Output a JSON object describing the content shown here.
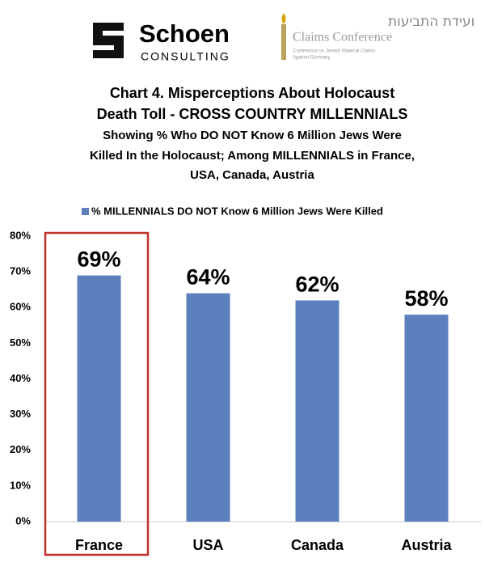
{
  "logos": {
    "schoen": "Schoen",
    "consulting": "CONSULTING",
    "hebrew": "ועידת התביעות",
    "claims": "Claims Conference",
    "claims_small": [
      "Conference on Jewish Material Claims",
      "Against Germany"
    ]
  },
  "chart_data": {
    "type": "bar",
    "title_lines": [
      "Chart 4. Misperceptions About Holocaust",
      "Death Toll  - CROSS COUNTRY MILLENNIALS"
    ],
    "subtitle_lines": [
      "Showing % Who DO NOT Know 6 Million Jews Were",
      "Killed In the Holocaust; Among MILLENNIALS in France,",
      "USA, Canada, Austria"
    ],
    "categories": [
      "France",
      "USA",
      "Canada",
      "Austria"
    ],
    "series": [
      {
        "name": "% MILLENNIALS DO NOT Know 6 Million Jews Were Killed",
        "color": "#5b80bd",
        "values": [
          69,
          64,
          62,
          58
        ],
        "value_labels": [
          "69%",
          "64%",
          "62%",
          "58%"
        ]
      }
    ],
    "ylim": [
      0,
      80
    ],
    "yticks": [
      {
        "value": 0,
        "label": "0%"
      },
      {
        "value": 10,
        "label": "10%"
      },
      {
        "value": 20,
        "label": "20%"
      },
      {
        "value": 30,
        "label": "30%"
      },
      {
        "value": 40,
        "label": "40%"
      },
      {
        "value": 50,
        "label": "50%"
      },
      {
        "value": 60,
        "label": "60%"
      },
      {
        "value": 70,
        "label": "70%"
      },
      {
        "value": 80,
        "label": "80%"
      }
    ],
    "grid": false,
    "legend": "top",
    "highlight": "France",
    "highlight_color": "#c0302b"
  }
}
